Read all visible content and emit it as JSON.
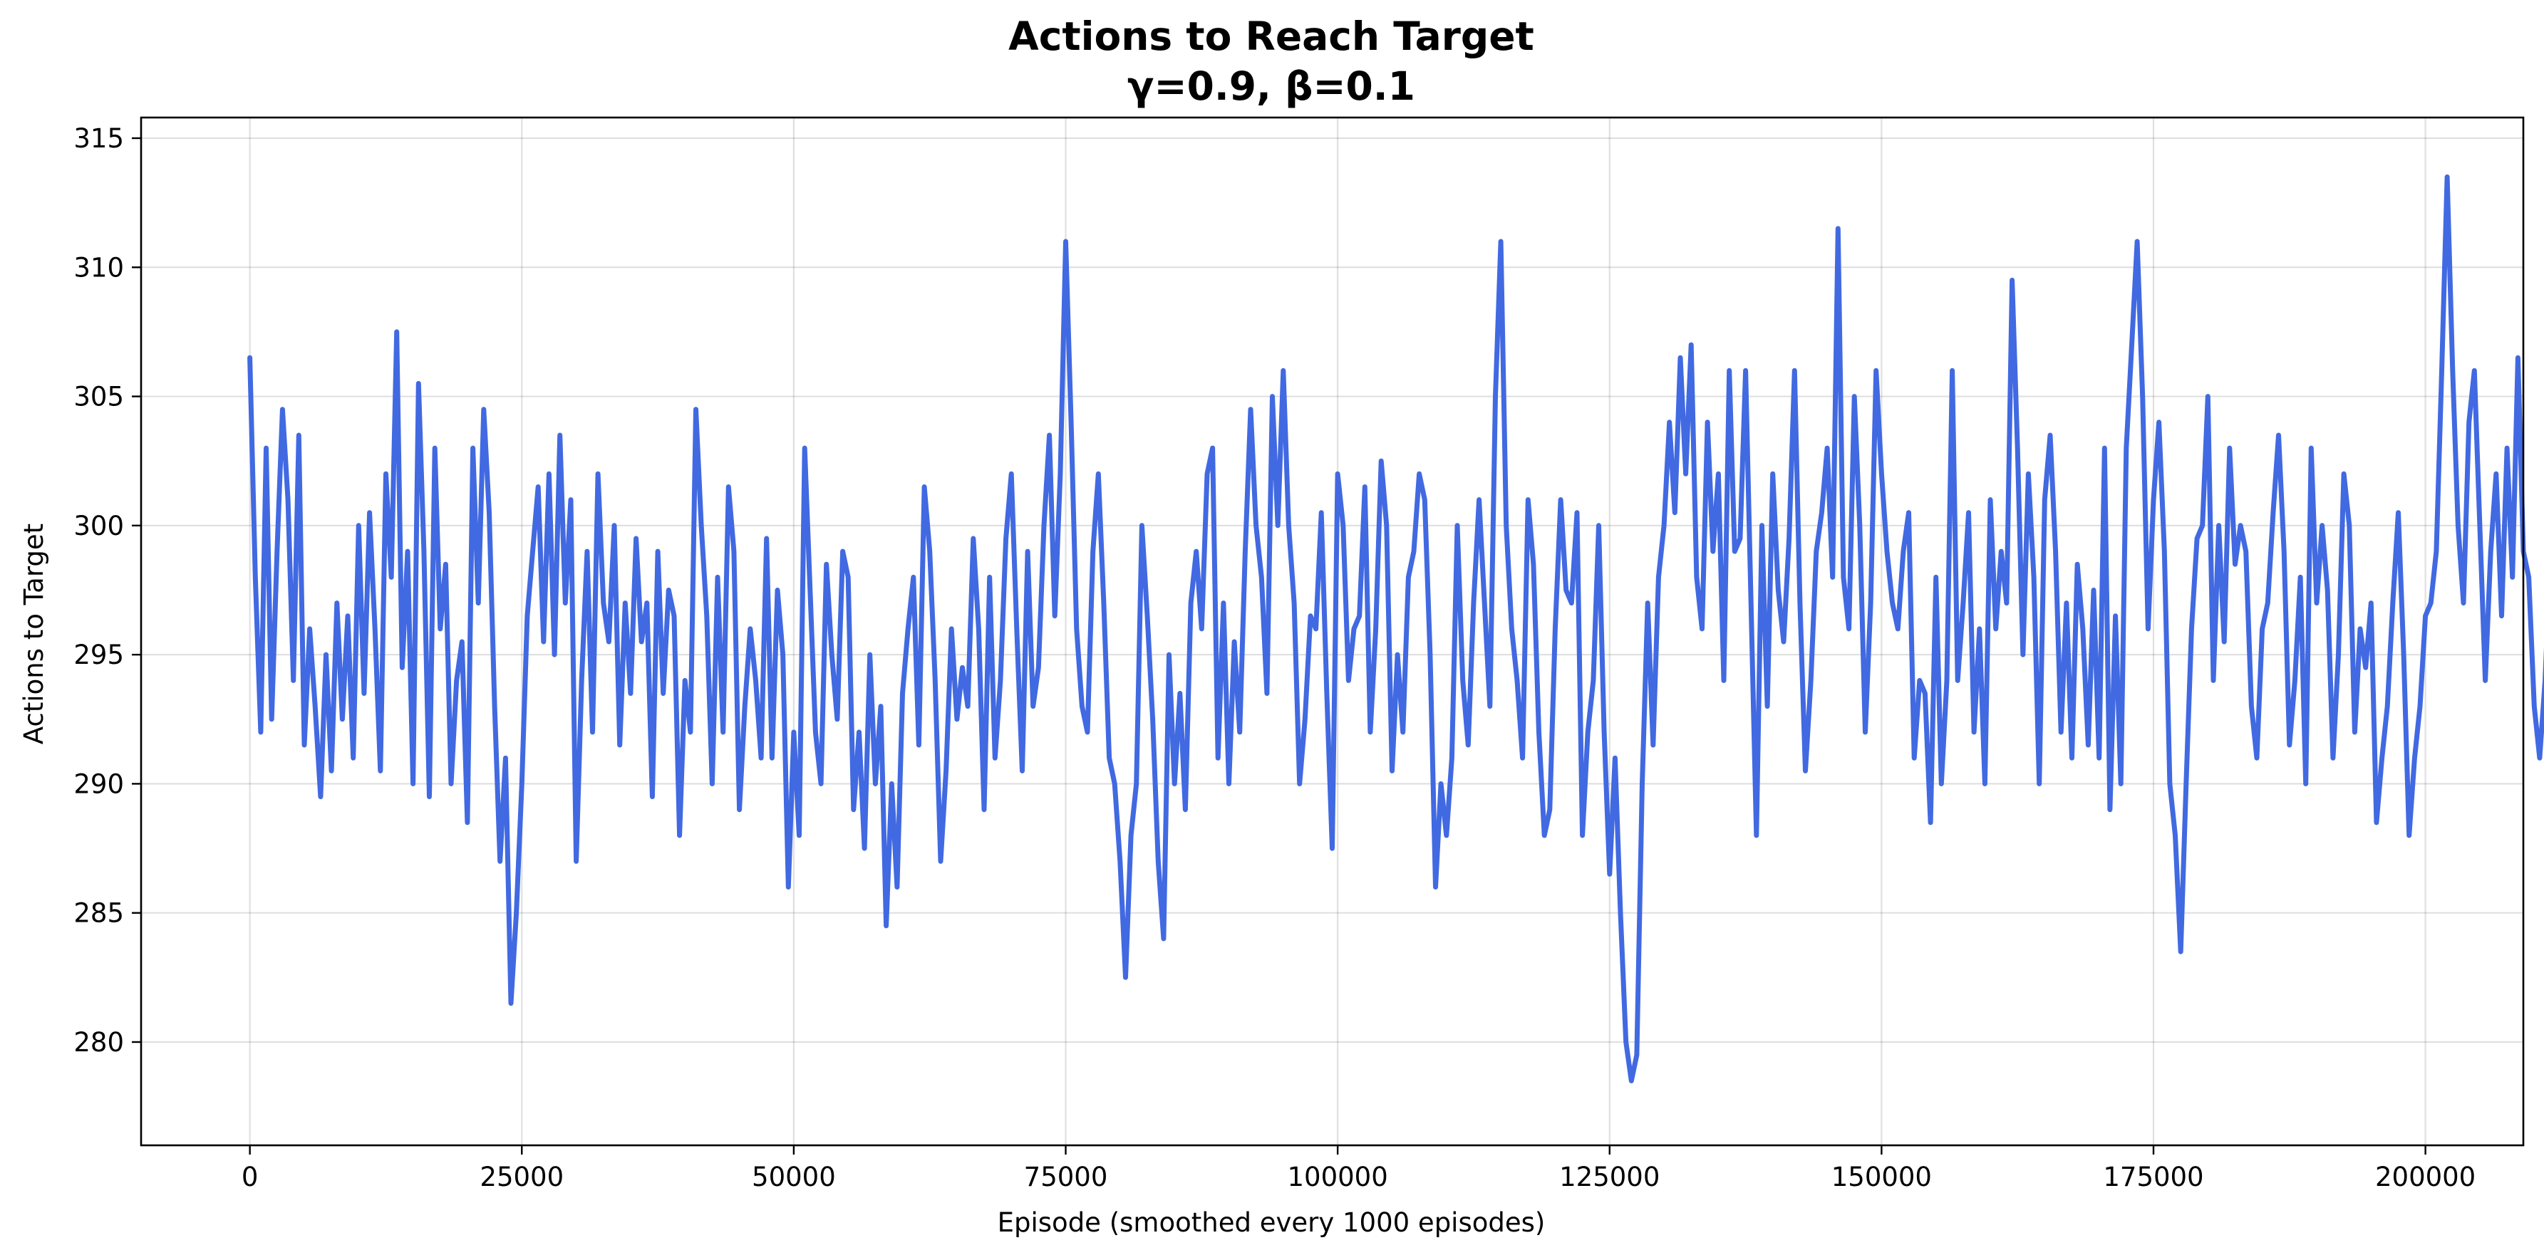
{
  "chart_data": {
    "type": "line",
    "title": "Actions to Reach Target",
    "subtitle": "γ=0.9, β=0.1",
    "xlabel": "Episode (smoothed every 1000 episodes)",
    "ylabel": "Actions to Target",
    "xlim": [
      -10000,
      209000
    ],
    "ylim": [
      276,
      315.8
    ],
    "xticks": [
      0,
      25000,
      50000,
      75000,
      100000,
      125000,
      150000,
      175000,
      200000
    ],
    "yticks": [
      280,
      285,
      290,
      295,
      300,
      305,
      310,
      315
    ],
    "grid": true,
    "series": [
      {
        "color": "#4169e1",
        "x_start": 0,
        "x_step": 500,
        "values": [
          306.5,
          298,
          292,
          303,
          292.5,
          299,
          304.5,
          301,
          294,
          303.5,
          291.5,
          296,
          293,
          289.5,
          295,
          290.5,
          297,
          292.5,
          296.5,
          291,
          300,
          293.5,
          300.5,
          296,
          290.5,
          302,
          298,
          307.5,
          294.5,
          299,
          290,
          305.5,
          299,
          289.5,
          303,
          296,
          298.5,
          290,
          294,
          295.5,
          288.5,
          303,
          297,
          304.5,
          300.5,
          293,
          287,
          291,
          281.5,
          285,
          290,
          296.5,
          299,
          301.5,
          295.5,
          302,
          295,
          303.5,
          297,
          301,
          287,
          294,
          299,
          292,
          302,
          297,
          295.5,
          300,
          291.5,
          297,
          293.5,
          299.5,
          295.5,
          297,
          289.5,
          299,
          293.5,
          297.5,
          296.5,
          288,
          294,
          292,
          304.5,
          300,
          296.5,
          290,
          298,
          292,
          301.5,
          299,
          289,
          293,
          296,
          294,
          291,
          299.5,
          291,
          297.5,
          295,
          286,
          292,
          288,
          303,
          297.5,
          292,
          290,
          298.5,
          295,
          292.5,
          299,
          298,
          289,
          292,
          287.5,
          295,
          290,
          293,
          284.5,
          290,
          286,
          293.5,
          296,
          298,
          291.5,
          301.5,
          299,
          294,
          287,
          290.5,
          296,
          292.5,
          294.5,
          293,
          299.5,
          296,
          289,
          298,
          291,
          294,
          299.5,
          302,
          296,
          290.5,
          299,
          293,
          294.5,
          300,
          303.5,
          296.5,
          302,
          311,
          304,
          296,
          293,
          292,
          299,
          302,
          297,
          291,
          290,
          287,
          282.5,
          288,
          290,
          300,
          296.5,
          292.5,
          287,
          284,
          295,
          290,
          293.5,
          289,
          297,
          299,
          296,
          302,
          303,
          291,
          297,
          290,
          295.5,
          292,
          299,
          304.5,
          300,
          298,
          293.5,
          305,
          300,
          306,
          300,
          297,
          290,
          292.5,
          296.5,
          296,
          300.5,
          293.5,
          287.5,
          302,
          300,
          294,
          296,
          296.5,
          301.5,
          292,
          296,
          302.5,
          300,
          290.5,
          295,
          292,
          298,
          299,
          302,
          301,
          295,
          286,
          290,
          288,
          291,
          300,
          294,
          291.5,
          297,
          301,
          297,
          293,
          305,
          311,
          300,
          296,
          294,
          291,
          301,
          298.5,
          292,
          288,
          289,
          296,
          301,
          297.5,
          297,
          300.5,
          288,
          292,
          294,
          300,
          292,
          286.5,
          291,
          285,
          280,
          278.5,
          279.5,
          290,
          297,
          291.5,
          298,
          300,
          304,
          300.5,
          306.5,
          302,
          307,
          298,
          296,
          304,
          299,
          302,
          294,
          306,
          299,
          299.5,
          306,
          297,
          288,
          300,
          293,
          302,
          297.5,
          295.5,
          299.5,
          306,
          297,
          290.5,
          294,
          299,
          300.5,
          303,
          298,
          311.5,
          298,
          296,
          305,
          300,
          292,
          297,
          306,
          302,
          299,
          297,
          296,
          299,
          300.5,
          291,
          294,
          293.5,
          288.5,
          298,
          290,
          294,
          306,
          294,
          297,
          300.5,
          292,
          296,
          290,
          301,
          296,
          299,
          297,
          309.5,
          303,
          295,
          302,
          298,
          290,
          301,
          303.5,
          299,
          292,
          297,
          291,
          298.5,
          296,
          291.5,
          297.5,
          291,
          303,
          289,
          296.5,
          290,
          303,
          307,
          311,
          305,
          296,
          301,
          304,
          299,
          290,
          288,
          283.5,
          290,
          296,
          299.5,
          300,
          305,
          294,
          300,
          295.5,
          303,
          298.5,
          300,
          299,
          293,
          291,
          296,
          297,
          300.5,
          303.5,
          299,
          291.5,
          294,
          298,
          290,
          303,
          297,
          300,
          297.5,
          291,
          295,
          302,
          300,
          292,
          296,
          294.5,
          297,
          288.5,
          291,
          293,
          297,
          300.5,
          295,
          288,
          291,
          293,
          296.5,
          297,
          299,
          306,
          313.5,
          306,
          300,
          297,
          304,
          306,
          300,
          294,
          299,
          302,
          296.5,
          303,
          298,
          306.5,
          299,
          298,
          293,
          291,
          294,
          299,
          304,
          296.5,
          296,
          299,
          297,
          292.5,
          295,
          291,
          294,
          300,
          296.5,
          298.5,
          293.5,
          296,
          291,
          295,
          301.5,
          300,
          295,
          297,
          293,
          292,
          298,
          290,
          299,
          294,
          286,
          290,
          300,
          297,
          295,
          289.5,
          293,
          290,
          293,
          291,
          298,
          294,
          300.5,
          294,
          296.5,
          290,
          285.5,
          292,
          289,
          296.5,
          290,
          295,
          291,
          287,
          292,
          296,
          295,
          292,
          290,
          305,
          297.5,
          303,
          296,
          300,
          298,
          293,
          301,
          306,
          300,
          307.5,
          299,
          303,
          297,
          299.5,
          301,
          303,
          304,
          295,
          300,
          300.5,
          297,
          291,
          299,
          293,
          292,
          295,
          303,
          294,
          296,
          300,
          291,
          289,
          288,
          300,
          301,
          292.5,
          299.5,
          296,
          303,
          297,
          291,
          300,
          293.5,
          294,
          293,
          297,
          291,
          303,
          301,
          306,
          299,
          294,
          297,
          303,
          296,
          292,
          289.5,
          294,
          301,
          296,
          288,
          284,
          282,
          300,
          305,
          313,
          307,
          300,
          295,
          296,
          302,
          305.5,
          295,
          291,
          297,
          299,
          299,
          286,
          283,
          291,
          297,
          296.5,
          294,
          303,
          300,
          294,
          306.5,
          300,
          297,
          289,
          283,
          286,
          298,
          293.5,
          296,
          304.5,
          292,
          290,
          296.5,
          302,
          288.5,
          293,
          296,
          291,
          297,
          304,
          299,
          295,
          301,
          291,
          286,
          293,
          298.5,
          300,
          303.5,
          295.5,
          288.5,
          291,
          293,
          299,
          303,
          294,
          300,
          297,
          306.5,
          299,
          295,
          290,
          288,
          294,
          299,
          302,
          300,
          297,
          291,
          286,
          289,
          296.5,
          291,
          300,
          297,
          309.5,
          297,
          301,
          297,
          292,
          296,
          303,
          290,
          287,
          283.5,
          289,
          293,
          297,
          301.5,
          297,
          293,
          300,
          303,
          294,
          290,
          299,
          295,
          298,
          297.5,
          300,
          302,
          296,
          295,
          300,
          297,
          303,
          294,
          299.5,
          297,
          293,
          300,
          305,
          301.5,
          293,
          299,
          303,
          297,
          301,
          312,
          306,
          299,
          294,
          297,
          297,
          298,
          303,
          300,
          298.5,
          301.5,
          294,
          296,
          288,
          285,
          291,
          300,
          297,
          292,
          300,
          297,
          290,
          298,
          302,
          283,
          281,
          295,
          300,
          293,
          300,
          299,
          302,
          296,
          300.5,
          294,
          296,
          301,
          296,
          299,
          301,
          296.5,
          298,
          294,
          296.5,
          300,
          303,
          300,
          294,
          303,
          307,
          311,
          305,
          313.5,
          307,
          301,
          299,
          296,
          300,
          298.5,
          295,
          299,
          297,
          294.5,
          299.5,
          293.5,
          294,
          297,
          300,
          295,
          293.5,
          299.5
        ]
      }
    ]
  }
}
